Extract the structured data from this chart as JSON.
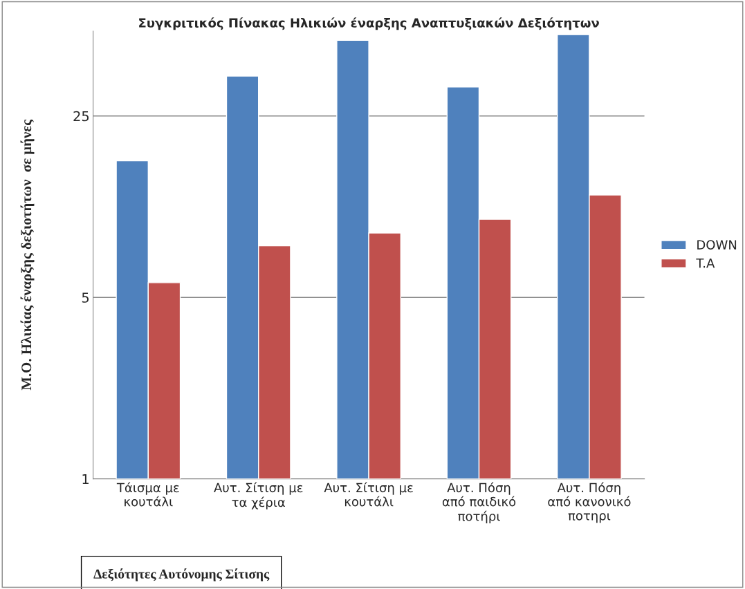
{
  "chart_data": {
    "type": "bar",
    "title": "Συγκριτικός Πίνακας Ηλικιών έναρξης Αναπτυξιακών Δεξιότητων",
    "xlabel": "Δεξιότητες Αυτόνομης Σίτισης",
    "ylabel": "Μ.Ο. Ηλικίας έναρξης δεξιοτήτων  σε μήνες",
    "categories": [
      "Τάισμα με\nκουτάλι",
      "Αυτ. Σίτιση με\nτα χέρια",
      "Αυτ. Σίτιση με\nκουτάλι",
      "Αυτ. Πόση\nαπό παιδικό\nποτήρι",
      "Αυτ. Πόση\nαπό κανονικό\nποτηρι"
    ],
    "series": [
      {
        "name": "DOWN",
        "color": "#4f81bd",
        "values": [
          16.8,
          35.6,
          48.9,
          32.3,
          51.4
        ]
      },
      {
        "name": "T.A",
        "color": "#c0504d",
        "values": [
          5.7,
          7.9,
          8.85,
          10.0,
          12.4
        ]
      }
    ],
    "log": "y",
    "ylim": [
      1,
      53
    ],
    "yticks": [
      1,
      5,
      25
    ],
    "grid": "y",
    "legend": "right"
  }
}
